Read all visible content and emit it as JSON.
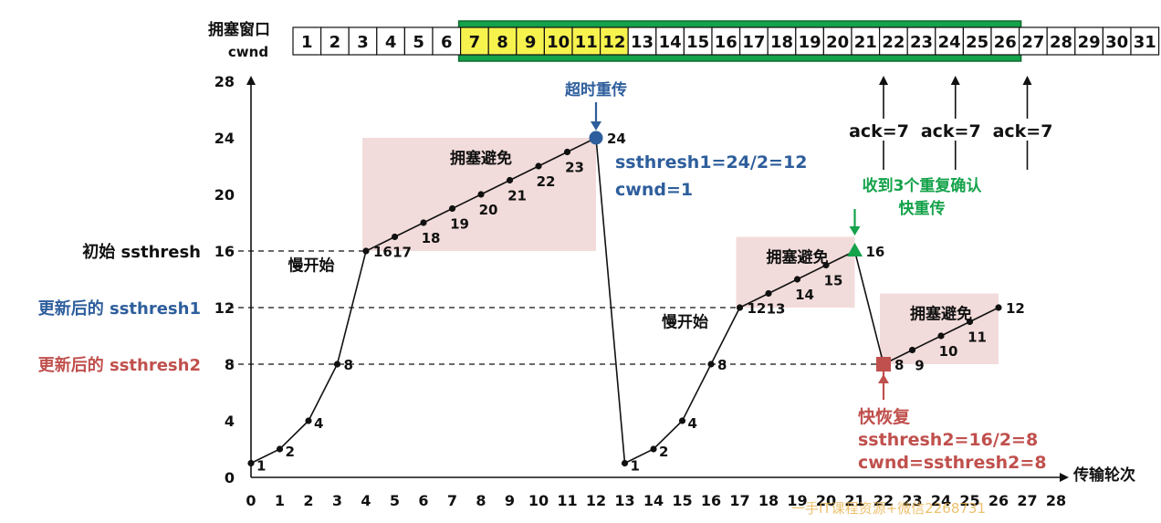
{
  "header": {
    "window_label": "拥塞窗口",
    "cwnd_label": "cwnd",
    "cells": [
      "1",
      "2",
      "3",
      "4",
      "5",
      "6",
      "7",
      "8",
      "9",
      "10",
      "11",
      "12",
      "13",
      "14",
      "15",
      "16",
      "17",
      "18",
      "19",
      "20",
      "21",
      "22",
      "23",
      "24",
      "25",
      "26",
      "27",
      "28",
      "29",
      "30",
      "31"
    ],
    "green_range": [
      7,
      26
    ],
    "yellow_range": [
      7,
      12
    ]
  },
  "colors": {
    "blue": "#2e5e9c",
    "red": "#c0504d",
    "green": "#14a24a",
    "pink_region": "#f2dcdb",
    "yellow": "#f7f34e",
    "axis": "#111111"
  },
  "chart_data": {
    "type": "line",
    "xlabel": "传输轮次",
    "ylabel": "",
    "xlim": [
      0,
      28
    ],
    "ylim": [
      0,
      28
    ],
    "xticks": [
      0,
      1,
      2,
      3,
      4,
      5,
      6,
      7,
      8,
      9,
      10,
      11,
      12,
      13,
      14,
      15,
      16,
      17,
      18,
      19,
      20,
      21,
      22,
      23,
      24,
      25,
      26,
      27,
      28
    ],
    "yticks": [
      0,
      4,
      8,
      12,
      16,
      20,
      24,
      28
    ],
    "grid": false,
    "series": [
      {
        "points": [
          [
            0,
            1,
            "1"
          ],
          [
            1,
            2,
            "2"
          ],
          [
            2,
            4,
            "4"
          ],
          [
            3,
            8,
            "8"
          ],
          [
            4,
            16,
            "16"
          ],
          [
            5,
            17,
            "17"
          ],
          [
            6,
            18,
            "18"
          ],
          [
            7,
            19,
            "19"
          ],
          [
            8,
            20,
            "20"
          ],
          [
            9,
            21,
            "21"
          ],
          [
            10,
            22,
            "22"
          ],
          [
            11,
            23,
            "23"
          ],
          [
            12,
            24,
            "24"
          ],
          [
            13,
            1,
            "1"
          ],
          [
            14,
            2,
            "2"
          ],
          [
            15,
            4,
            "4"
          ],
          [
            16,
            8,
            "8"
          ],
          [
            17,
            12,
            "12"
          ],
          [
            18,
            13,
            "13"
          ],
          [
            19,
            14,
            "14"
          ],
          [
            20,
            15,
            "15"
          ],
          [
            21,
            16,
            "16"
          ],
          [
            22,
            8,
            "8"
          ],
          [
            23,
            9,
            "9"
          ],
          [
            24,
            10,
            "10"
          ],
          [
            25,
            11,
            "11"
          ],
          [
            26,
            12,
            "12"
          ]
        ]
      }
    ],
    "thresholds": [
      {
        "y": 16,
        "x_end": 4,
        "label": "初始 ssthresh",
        "color": "#111111"
      },
      {
        "y": 12,
        "x_end": 17,
        "label": "更新后的 ssthresh1",
        "color": "#2e5e9c"
      },
      {
        "y": 8,
        "x_end": 22,
        "label": "更新后的 ssthresh2",
        "color": "#c0504d"
      }
    ],
    "regions": [
      {
        "x0": 4,
        "x1": 12,
        "y0": 16,
        "y1": 24,
        "label": "拥塞避免"
      },
      {
        "x0": 17,
        "x1": 21,
        "y0": 12,
        "y1": 17,
        "label": "拥塞避免"
      },
      {
        "x0": 22,
        "x1": 26,
        "y0": 8,
        "y1": 13,
        "label": "拥塞避免"
      }
    ],
    "slow_start_labels": [
      {
        "x": 2,
        "y": 14.6,
        "text": "慢开始"
      },
      {
        "x": 15,
        "y": 10.6,
        "text": "慢开始"
      }
    ],
    "markers": [
      {
        "x": 12,
        "y": 24,
        "shape": "circle",
        "color": "#2e5e9c"
      },
      {
        "x": 21,
        "y": 16,
        "shape": "triangle",
        "color": "#14a24a"
      },
      {
        "x": 22,
        "y": 8,
        "shape": "square",
        "color": "#c0504d"
      }
    ],
    "annotations": {
      "timeout": {
        "title": "超时重传",
        "lines": [
          "ssthresh1=24/2=12",
          "cwnd=1"
        ],
        "color": "#2e5e9c"
      },
      "fast_retransmit": {
        "lines": [
          "收到3个重复确认",
          "快重传"
        ],
        "color": "#14a24a"
      },
      "fast_recovery": {
        "title": "快恢复",
        "lines": [
          "ssthresh2=16/2=8",
          "cwnd=ssthresh2=8"
        ],
        "color": "#c0504d"
      }
    },
    "acks": [
      {
        "x": 22,
        "label": "ack=7"
      },
      {
        "x": 24.5,
        "label": "ack=7"
      },
      {
        "x": 27,
        "label": "ack=7"
      }
    ]
  },
  "watermark": "一手IT课程资源+微信2268731"
}
